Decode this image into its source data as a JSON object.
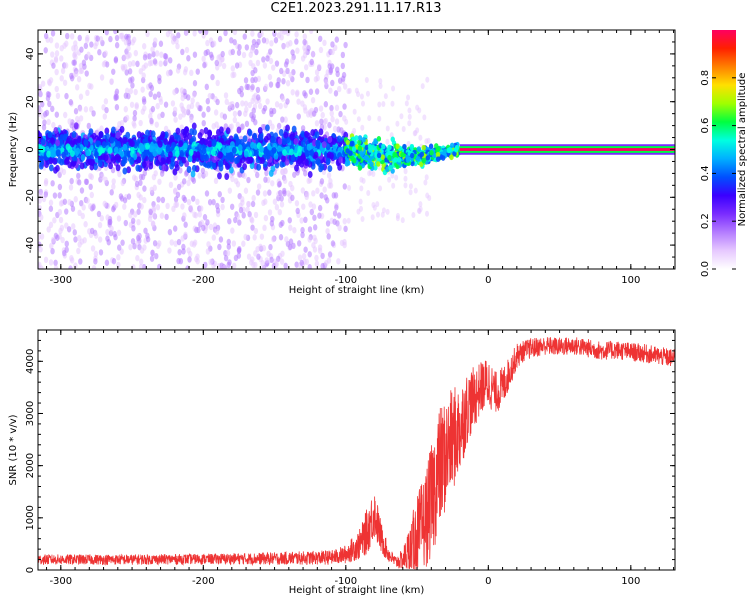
{
  "title": "C2E1.2023.291.11.17.R13",
  "chart_data": [
    {
      "type": "heatmap",
      "xlabel": "Height of straight line (km)",
      "ylabel": "Frequency (Hz)",
      "xlim": [
        -316,
        131
      ],
      "ylim": [
        -50,
        50
      ],
      "xticks": [
        -300,
        -200,
        -100,
        0,
        100
      ],
      "yticks": [
        -40,
        -20,
        0,
        20,
        40
      ],
      "colorbar": {
        "label": "Normalized spectral amplitude",
        "range": [
          0.0,
          1.0
        ],
        "ticks": [
          0.0,
          0.2,
          0.4,
          0.6,
          0.8
        ],
        "colors": [
          "#ffffff",
          "#e6c8ff",
          "#b47cff",
          "#7a2cff",
          "#3a00ff",
          "#0050ff",
          "#00b0ff",
          "#00ffe0",
          "#00ff40",
          "#a0ff00",
          "#ffe000",
          "#ff8000",
          "#ff2000",
          "#ff0060"
        ]
      },
      "grid": false,
      "features": {
        "noise_band_x": [
          -316,
          -100
        ],
        "converging_band_x": [
          -100,
          -20
        ],
        "steady_line_x": [
          -20,
          131
        ],
        "steady_line_frequency": 0,
        "steady_line_amplitude": 1.0
      }
    },
    {
      "type": "line",
      "xlabel": "Height of straight line (km)",
      "ylabel": "SNR (10 * v/v)",
      "xlim": [
        -316,
        131
      ],
      "ylim": [
        0,
        4600
      ],
      "xticks": [
        -300,
        -200,
        -100,
        0,
        100
      ],
      "yticks": [
        0,
        1000,
        2000,
        3000,
        4000
      ],
      "color": "#ee3333",
      "grid": false,
      "x": [
        -316,
        -250,
        -200,
        -150,
        -110,
        -100,
        -90,
        -85,
        -80,
        -75,
        -70,
        -65,
        -60,
        -55,
        -50,
        -45,
        -40,
        -35,
        -30,
        -25,
        -20,
        -15,
        -10,
        -5,
        0,
        5,
        10,
        15,
        20,
        25,
        30,
        40,
        50,
        60,
        70,
        80,
        90,
        100,
        110,
        120,
        131
      ],
      "y": [
        200,
        200,
        210,
        220,
        240,
        300,
        500,
        750,
        1100,
        600,
        300,
        150,
        200,
        400,
        650,
        900,
        1300,
        1900,
        2200,
        2500,
        2700,
        3100,
        3300,
        3500,
        3600,
        3400,
        3500,
        3800,
        4100,
        4200,
        4250,
        4300,
        4280,
        4300,
        4250,
        4200,
        4220,
        4180,
        4150,
        4100,
        4050
      ],
      "noise_amplitude": [
        100,
        100,
        100,
        120,
        140,
        180,
        300,
        450,
        500,
        300,
        150,
        120,
        200,
        500,
        800,
        900,
        1100,
        1200,
        1100,
        1000,
        900,
        700,
        600,
        500,
        500,
        400,
        400,
        300,
        250,
        200,
        200,
        180,
        180,
        180,
        180,
        180,
        180,
        180,
        180,
        180,
        180
      ]
    }
  ]
}
